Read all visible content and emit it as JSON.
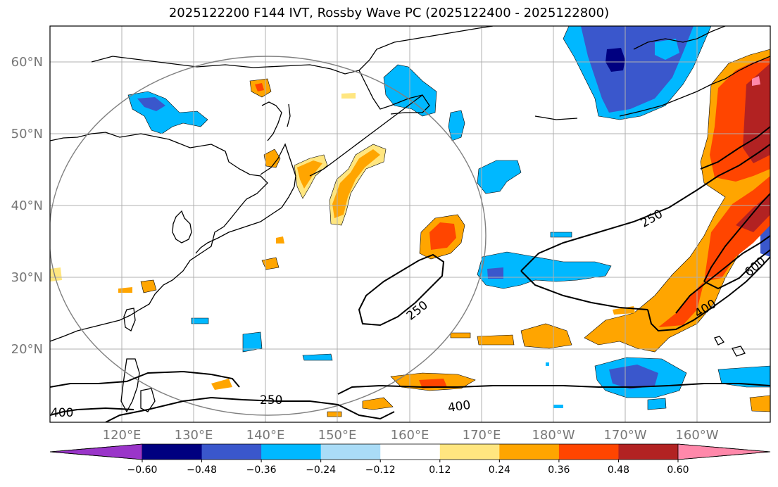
{
  "title": "2025122200 F144 IVT, Rossby Wave PC (2025122400 - 2025122800)",
  "latitude_labels": [
    "60°N",
    "50°N",
    "40°N",
    "30°N",
    "20°N"
  ],
  "longitude_labels": [
    "120°E",
    "130°E",
    "140°E",
    "150°E",
    "160°E",
    "170°E",
    "180°W",
    "170°W",
    "160°W"
  ],
  "contour_labels": [
    "250",
    "250",
    "250",
    "400",
    "400",
    "400",
    "600"
  ],
  "colorbar": {
    "tick_labels": [
      "−0.60",
      "−0.48",
      "−0.36",
      "−0.24",
      "−0.12",
      "0.12",
      "0.24",
      "0.36",
      "0.48",
      "0.60"
    ],
    "colors": [
      "#9a35c9",
      "#000080",
      "#3a57cc",
      "#00b8ff",
      "#aadcf7",
      "#ffffff",
      "#ffe680",
      "#ffa500",
      "#ff4500",
      "#b22222",
      "#ff88aa"
    ]
  },
  "colors": {
    "coastline": "#000000",
    "grid": "#b0b0b0",
    "circle": "#808080",
    "contour": "#000000"
  }
}
